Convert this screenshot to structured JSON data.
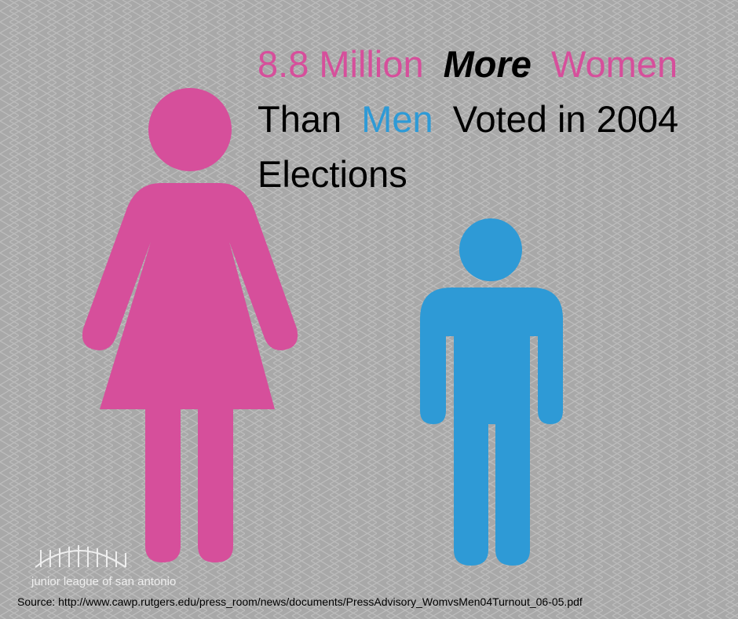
{
  "headline": {
    "line1": [
      "8.8 Million",
      "More",
      "Women"
    ],
    "line2": [
      "Than",
      "Men",
      "Voted in 2004"
    ],
    "line3": "Elections"
  },
  "logo": "junior league of san antonio",
  "source": "Source: http://www.cawp.rutgers.edu/press_room/news/documents/PressAdvisory_WomvsMen04Turnout_06-05.pdf"
}
